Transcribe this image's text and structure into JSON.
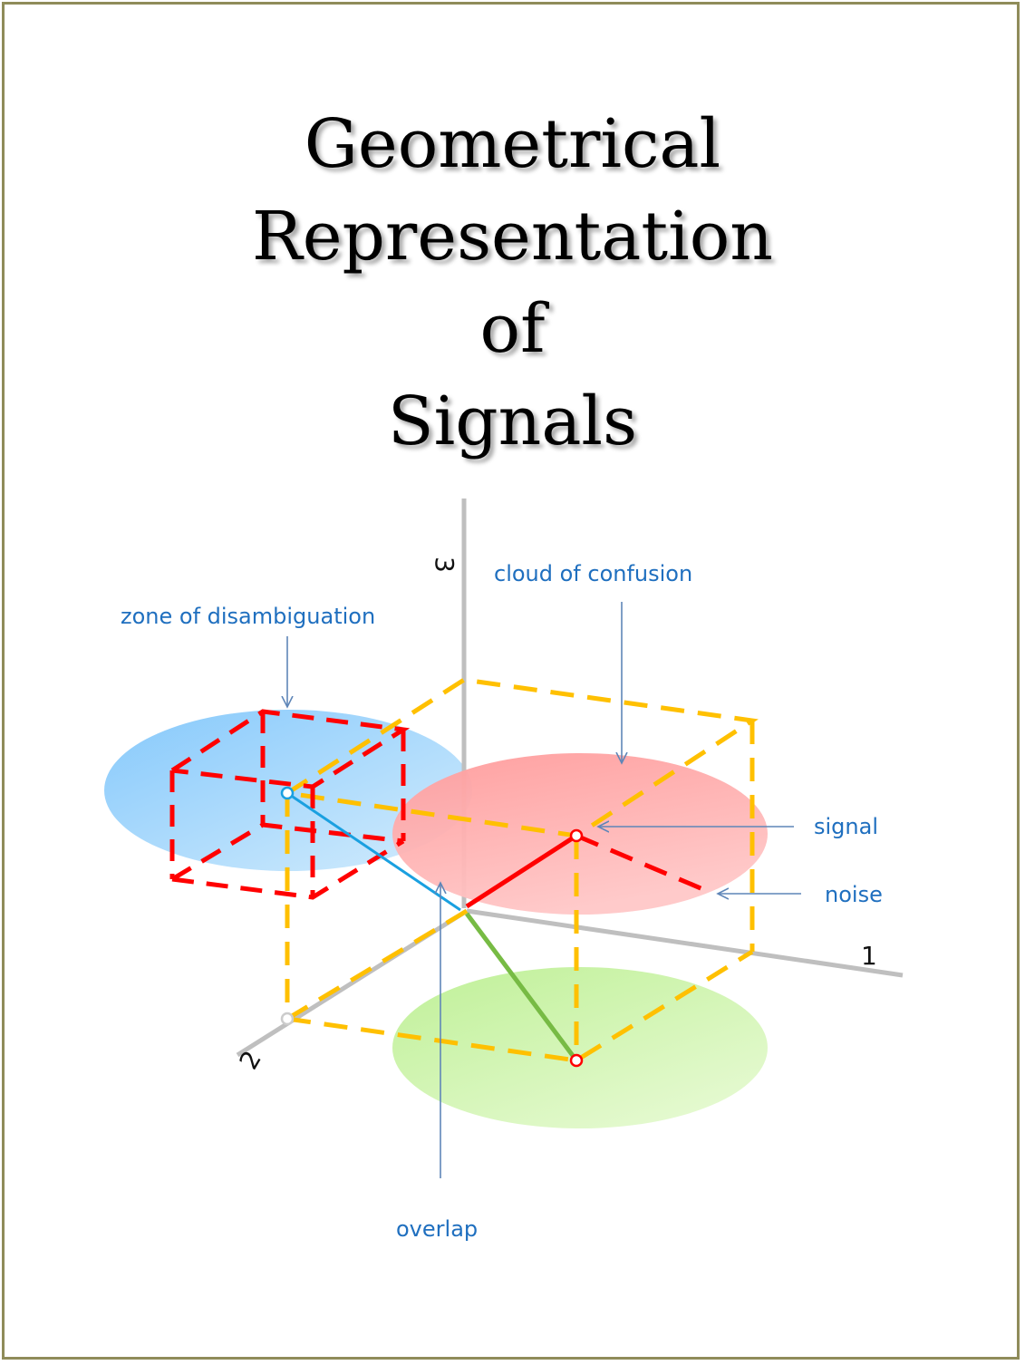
{
  "title_lines": [
    "Geometrical",
    "Representation",
    "of",
    "Signals"
  ],
  "axes": {
    "x": "1",
    "y": "2",
    "z": "3"
  },
  "labels": {
    "cloud": "cloud of confusion",
    "zone": "zone of disambiguation",
    "signal": "signal",
    "noise": "noise",
    "overlap": "overlap"
  },
  "colors": {
    "frame": "#8f8c5a",
    "axis": "#bfbfbf",
    "label": "#1f6fbf",
    "annotation_arrow": "#5f86b8",
    "yellow_dashes": "#ffc000",
    "red_dashes": "#ff0000",
    "signal_vector": "#ff0000",
    "projection_vector": "#77bb44",
    "overlap_line": "#1aa0e0",
    "blue_cloud": "#9fd4fb",
    "red_cloud": "#ffa7a7",
    "green_cloud": "#cdf2a8"
  }
}
